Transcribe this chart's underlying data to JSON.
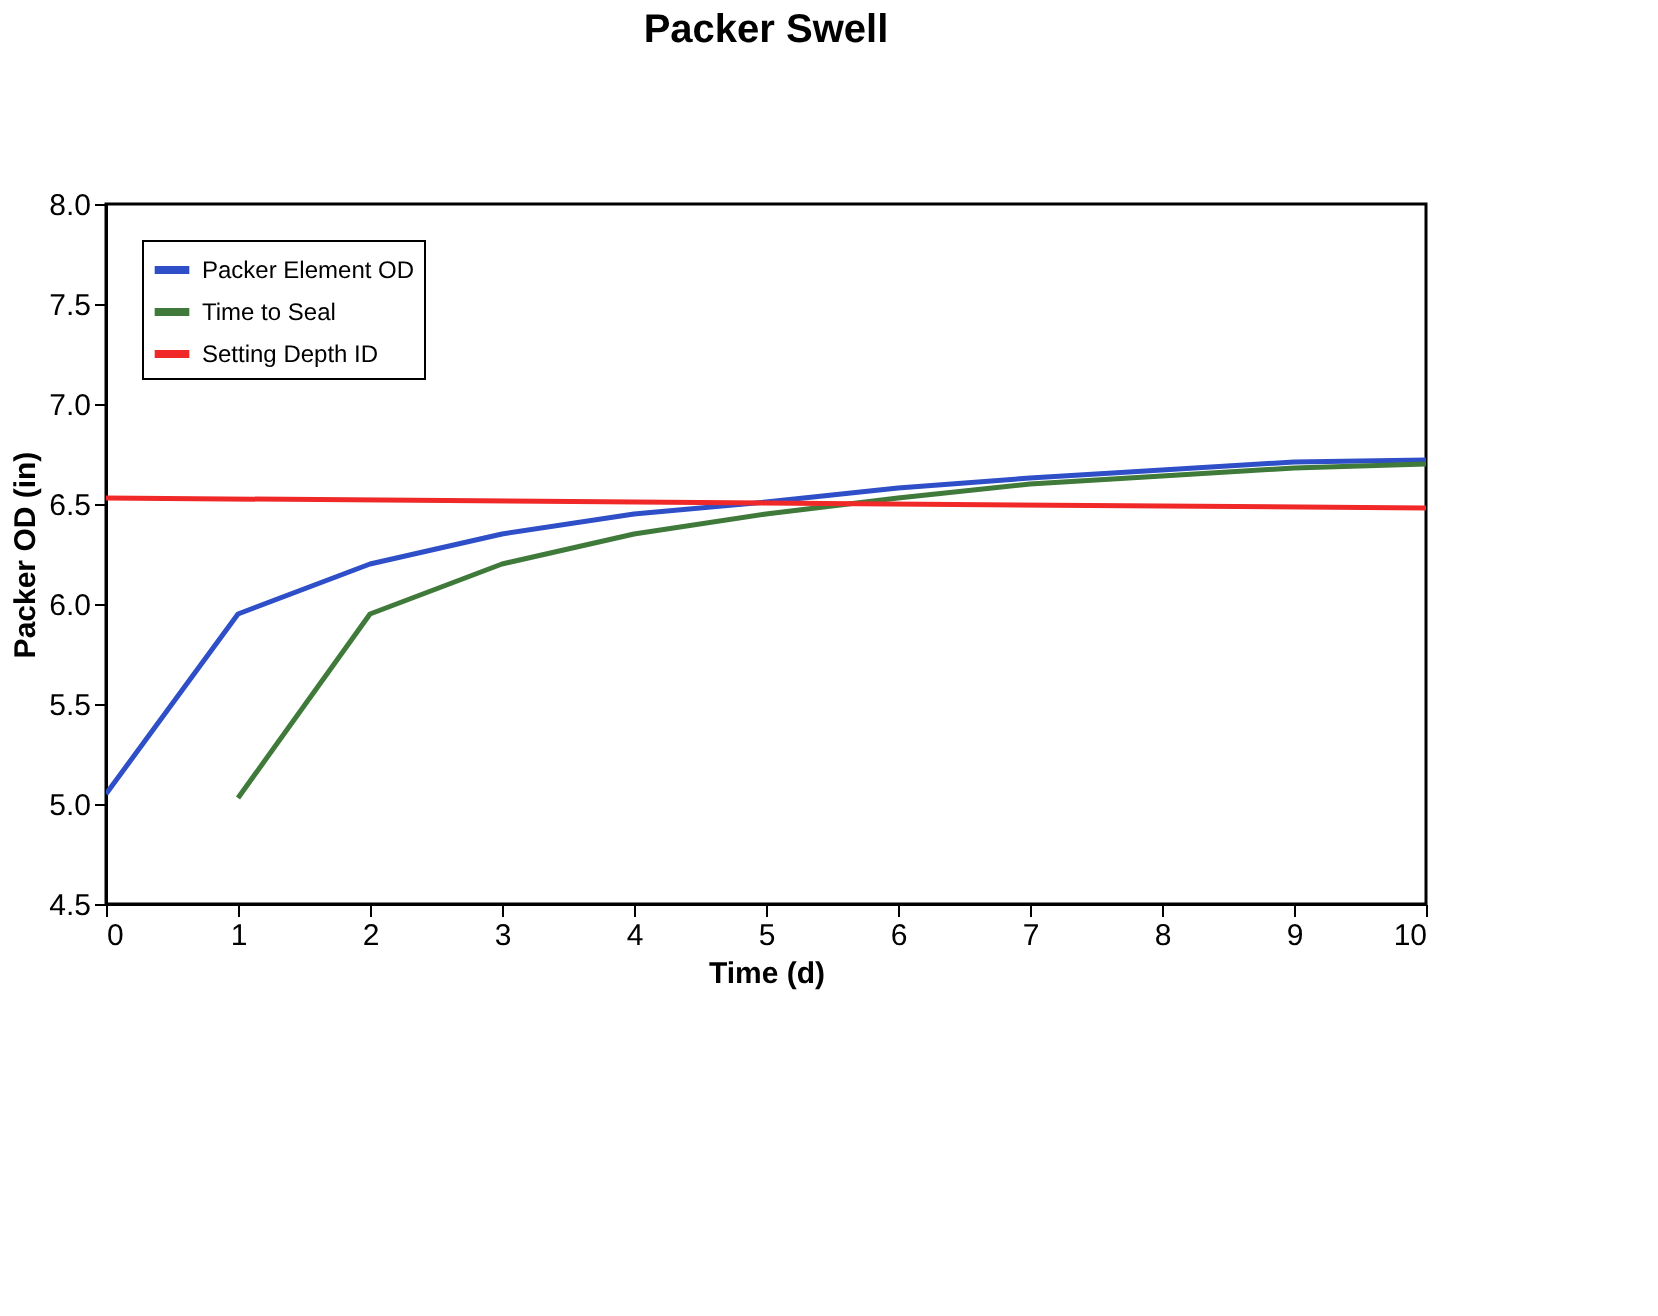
{
  "chart_data": {
    "type": "line",
    "title": "Packer Swell",
    "xlabel": "Time (d)",
    "ylabel": "Packer OD (in)",
    "xlim": [
      0,
      10
    ],
    "xticks": [
      0,
      1,
      2,
      3,
      4,
      5,
      6,
      7,
      8,
      9,
      10
    ],
    "ylim": [
      4.5,
      8.0
    ],
    "yticks": [
      {
        "value": 4.5,
        "label": "4.5"
      },
      {
        "value": 5.0,
        "label": "5.0"
      },
      {
        "value": 5.5,
        "label": "5.5"
      },
      {
        "value": 6.0,
        "label": "6.0"
      },
      {
        "value": 6.5,
        "label": "6.5"
      },
      {
        "value": 7.0,
        "label": "7.0"
      },
      {
        "value": 7.5,
        "label": "7.5"
      },
      {
        "value": 8.0,
        "label": "8.0"
      }
    ],
    "grid": false,
    "legend": "top left",
    "marker": "none",
    "line_style": "solid",
    "series": [
      {
        "name": "Packer Element OD",
        "color": "#2f4fc8",
        "x": [
          0,
          1,
          2,
          3,
          4,
          5,
          6,
          7,
          8,
          9,
          10
        ],
        "values": [
          5.05,
          5.95,
          6.2,
          6.35,
          6.45,
          6.51,
          6.58,
          6.63,
          6.67,
          6.71,
          6.72
        ]
      },
      {
        "name": "Time to Seal",
        "color": "#3f7a3a",
        "x": [
          1,
          2,
          3,
          4,
          5,
          6,
          7,
          8,
          9,
          10
        ],
        "values": [
          5.03,
          5.95,
          6.2,
          6.35,
          6.45,
          6.53,
          6.6,
          6.64,
          6.68,
          6.7
        ]
      },
      {
        "name": "Setting Depth ID",
        "color": "#f02828",
        "x": [
          0,
          10
        ],
        "values": [
          6.53,
          6.48
        ]
      }
    ]
  }
}
